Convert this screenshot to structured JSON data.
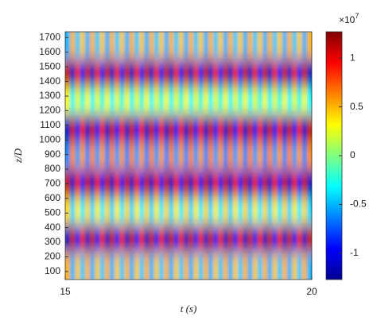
{
  "chart_data": {
    "type": "heatmap",
    "xlabel": "t (s)",
    "ylabel": "z/D",
    "xlim": [
      15,
      20
    ],
    "xticks": [
      15,
      20
    ],
    "ylim": [
      45,
      1740
    ],
    "yticks": [
      100,
      200,
      300,
      400,
      500,
      600,
      700,
      800,
      900,
      1000,
      1100,
      1200,
      1300,
      1400,
      1500,
      1600,
      1700
    ],
    "x": [
      15.05,
      15.15,
      15.25,
      15.35,
      15.45,
      15.55,
      15.65,
      15.75,
      15.85,
      15.95,
      16.05,
      16.15,
      16.25,
      16.35,
      16.45,
      16.55,
      16.65,
      16.75,
      16.85,
      16.95,
      17.05,
      17.15,
      17.25,
      17.35,
      17.45,
      17.55,
      17.65,
      17.75,
      17.85,
      17.95,
      18.05,
      18.15,
      18.25,
      18.35,
      18.45,
      18.55,
      18.65,
      18.75,
      18.85,
      18.95,
      19.05,
      19.15,
      19.25,
      19.35,
      19.45,
      19.55,
      19.65,
      19.75,
      19.85,
      19.95
    ],
    "y": [
      139,
      327,
      516,
      704,
      892,
      1081,
      1269,
      1457,
      1646
    ],
    "z": [
      [
        0.5,
        -0.5,
        0.45,
        -0.45,
        0.5,
        -0.5,
        0.45,
        -0.45,
        0.5,
        -0.5,
        0.45,
        -0.45,
        0.5,
        -0.5,
        0.45,
        -0.45,
        0.5,
        -0.5,
        0.45,
        -0.45,
        0.5,
        -0.5,
        0.45,
        -0.45,
        0.5,
        -0.5,
        0.45,
        -0.45,
        0.5,
        -0.5,
        0.45,
        -0.45,
        0.5,
        -0.5,
        0.45,
        -0.45,
        0.5,
        -0.5,
        0.45,
        -0.45,
        0.5,
        -0.5,
        0.45,
        -0.45,
        0.5,
        -0.5,
        0.45,
        -0.45,
        0.5,
        -0.5
      ],
      [
        -1.1,
        1.1,
        -1,
        1,
        -1.1,
        1.1,
        -1,
        1,
        -1.1,
        1.1,
        -1,
        1,
        -1.1,
        1.1,
        -1,
        1,
        -1.1,
        1.1,
        -1,
        1,
        -1.1,
        1.1,
        -1,
        1,
        -1.1,
        1.1,
        -1,
        1,
        -1.1,
        1.1,
        -1,
        1,
        -1.1,
        1.1,
        -1,
        1,
        -1.1,
        1.1,
        -1,
        1,
        -1.1,
        1.1,
        -1,
        1,
        -1.1,
        1.1,
        -1,
        1,
        -1.1,
        1.1
      ],
      [
        0.4,
        -0.4,
        0.35,
        -0.35,
        0.4,
        -0.4,
        0.35,
        -0.35,
        0.4,
        -0.4,
        0.35,
        -0.35,
        0.4,
        -0.4,
        0.35,
        -0.35,
        0.4,
        -0.4,
        0.35,
        -0.35,
        0.4,
        -0.4,
        0.35,
        -0.35,
        0.4,
        -0.4,
        0.35,
        -0.35,
        0.4,
        -0.4,
        0.35,
        -0.35,
        0.4,
        -0.4,
        0.35,
        -0.35,
        0.4,
        -0.4,
        0.35,
        -0.35,
        0.4,
        -0.4,
        0.35,
        -0.35,
        0.4,
        -0.4,
        0.35,
        -0.35,
        0.4,
        -0.4
      ],
      [
        1.1,
        -1.1,
        1,
        -1,
        1.1,
        -1.1,
        1,
        -1,
        1.1,
        -1.1,
        1,
        -1,
        1.1,
        -1.1,
        1,
        -1,
        1.1,
        -1.1,
        1,
        -1,
        1.1,
        -1.1,
        1,
        -1,
        1.1,
        -1.1,
        1,
        -1,
        1.1,
        -1.1,
        1,
        -1,
        1.1,
        -1.1,
        1,
        -1,
        1.1,
        -1.1,
        1,
        -1,
        1.1,
        -1.1,
        1,
        -1,
        1.1,
        -1.1,
        1,
        -1,
        1.1,
        -1.1
      ],
      [
        -0.6,
        0.6,
        -0.55,
        0.55,
        -0.6,
        0.6,
        -0.55,
        0.55,
        -0.6,
        0.6,
        -0.55,
        0.55,
        -0.6,
        0.6,
        -0.55,
        0.55,
        -0.6,
        0.6,
        -0.55,
        0.55,
        -0.6,
        0.6,
        -0.55,
        0.55,
        -0.6,
        0.6,
        -0.55,
        0.55,
        -0.6,
        0.6,
        -0.55,
        0.55,
        -0.6,
        0.6,
        -0.55,
        0.55,
        -0.6,
        0.6,
        -0.55,
        0.55,
        -0.6,
        0.6,
        -0.55,
        0.55,
        -0.6,
        0.6,
        -0.55,
        0.55,
        -0.6,
        0.6
      ],
      [
        -1.1,
        1.1,
        -1,
        1,
        -1.1,
        1.1,
        -1,
        1,
        -1.1,
        1.1,
        -1,
        1,
        -1.1,
        1.1,
        -1,
        1,
        -1.1,
        1.1,
        -1,
        1,
        -1.1,
        1.1,
        -1,
        1,
        -1.1,
        1.1,
        -1,
        1,
        -1.1,
        1.1,
        -1,
        1,
        -1.1,
        1.1,
        -1,
        1,
        -1.1,
        1.1,
        -1,
        1,
        -1.1,
        1.1,
        -1,
        1,
        -1.1,
        1.1,
        -1,
        1,
        -1.1,
        1.1
      ],
      [
        0.3,
        -0.3,
        0.25,
        -0.25,
        0.3,
        -0.3,
        0.25,
        -0.25,
        0.3,
        -0.3,
        0.25,
        -0.25,
        0.3,
        -0.3,
        0.25,
        -0.25,
        0.3,
        -0.3,
        0.25,
        -0.25,
        0.3,
        -0.3,
        0.25,
        -0.25,
        0.3,
        -0.3,
        0.25,
        -0.25,
        0.3,
        -0.3,
        0.25,
        -0.25,
        0.3,
        -0.3,
        0.25,
        -0.25,
        0.3,
        -0.3,
        0.25,
        -0.25,
        0.3,
        -0.3,
        0.25,
        -0.25,
        0.3,
        -0.3,
        0.25,
        -0.25,
        0.3,
        -0.3
      ],
      [
        1.1,
        -1.1,
        1,
        -1,
        1.1,
        -1.1,
        1,
        -1,
        1.1,
        -1.1,
        1,
        -1,
        1.1,
        -1.1,
        1,
        -1,
        1.1,
        -1.1,
        1,
        -1,
        1.1,
        -1.1,
        1,
        -1,
        1.1,
        -1.1,
        1,
        -1,
        1.1,
        -1.1,
        1,
        -1,
        1.1,
        -1.1,
        1,
        -1,
        1.1,
        -1.1,
        1,
        -1,
        1.1,
        -1.1,
        1,
        -1,
        1.1,
        -1.1,
        1,
        -1,
        1.1,
        -1.1
      ],
      [
        -0.5,
        0.5,
        -0.45,
        0.45,
        -0.5,
        0.5,
        -0.45,
        0.45,
        -0.5,
        0.5,
        -0.45,
        0.45,
        -0.5,
        0.5,
        -0.45,
        0.45,
        -0.5,
        0.5,
        -0.45,
        0.45,
        -0.5,
        0.5,
        -0.45,
        0.45,
        -0.5,
        0.5,
        -0.45,
        0.45,
        -0.5,
        0.5,
        -0.45,
        0.45,
        -0.5,
        0.5,
        -0.45,
        0.45,
        -0.5,
        0.5,
        -0.45,
        0.45,
        -0.5,
        0.5,
        -0.45,
        0.45,
        -0.5,
        0.5,
        -0.45,
        0.45,
        -0.5,
        0.5
      ]
    ],
    "colorbar": {
      "lim": [
        -1.27,
        1.27
      ],
      "ticks": [
        -1,
        -0.5,
        0,
        0.5,
        1
      ],
      "multiplier": "×10",
      "exponent": "7"
    }
  }
}
